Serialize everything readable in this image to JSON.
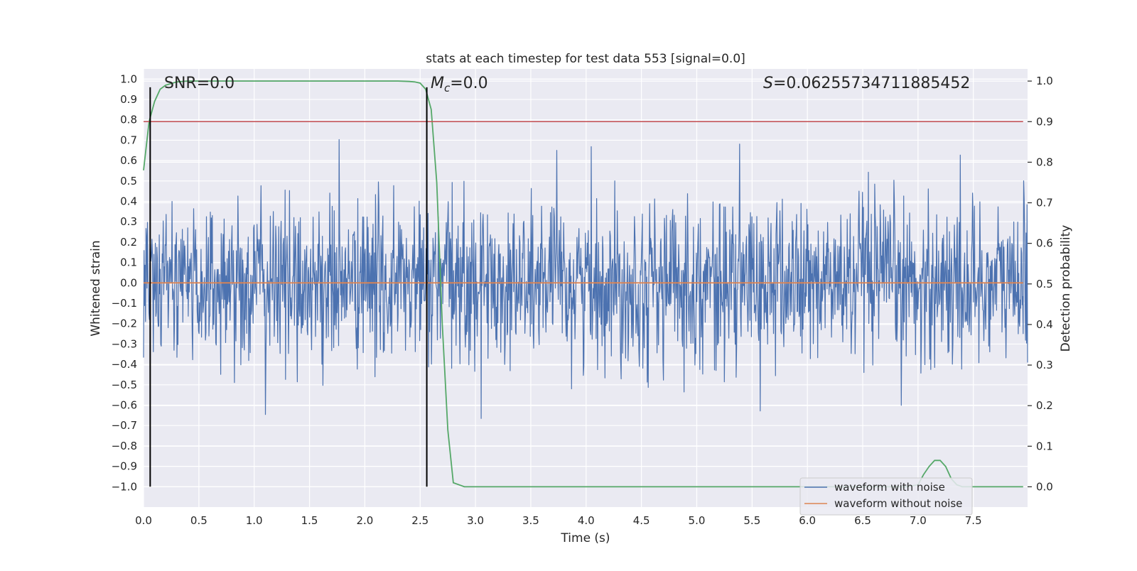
{
  "chart_data": {
    "type": "line",
    "title": "stats at each timestep for test data 553 [signal=0.0]",
    "xlabel": "Time (s)",
    "ylabel_left": "Whitened strain",
    "ylabel_right": "Detection probability",
    "xlim": [
      0.0,
      7.99
    ],
    "ylim_left": [
      -1.1,
      1.05
    ],
    "ylim_right": [
      -0.05,
      1.03
    ],
    "x_ticks": [
      0.0,
      0.5,
      1.0,
      1.5,
      2.0,
      2.5,
      3.0,
      3.5,
      4.0,
      4.5,
      5.0,
      5.5,
      6.0,
      6.5,
      7.0,
      7.5
    ],
    "x_tick_labels": [
      "0.0",
      "0.5",
      "1.0",
      "1.5",
      "2.0",
      "2.5",
      "3.0",
      "3.5",
      "4.0",
      "4.5",
      "5.0",
      "5.5",
      "6.0",
      "6.5",
      "7.0",
      "7.5"
    ],
    "y_left_ticks": [
      1.0,
      0.9,
      0.8,
      0.7,
      0.6,
      0.5,
      0.4,
      0.3,
      0.2,
      0.1,
      0.0,
      -0.1,
      -0.2,
      -0.3,
      -0.4,
      -0.5,
      -0.6,
      -0.7,
      -0.8,
      -0.9,
      -1.0
    ],
    "y_left_tick_labels": [
      "1.0",
      "0.9",
      "0.8",
      "0.7",
      "0.6",
      "0.5",
      "0.4",
      "0.3",
      "0.2",
      "0.1",
      "0.0",
      "−0.1",
      "−0.2",
      "−0.3",
      "−0.4",
      "−0.5",
      "−0.6",
      "−0.7",
      "−0.8",
      "−0.9",
      "−1.0"
    ],
    "y_right_ticks": [
      1.0,
      0.9,
      0.8,
      0.7,
      0.6,
      0.5,
      0.4,
      0.3,
      0.2,
      0.1,
      0.0
    ],
    "y_right_tick_labels": [
      "1.0",
      "0.9",
      "0.8",
      "0.7",
      "0.6",
      "0.5",
      "0.4",
      "0.3",
      "0.2",
      "0.1",
      "0.0"
    ],
    "grid": true,
    "annotations": {
      "snr": "SNR=0.0",
      "mc_symbol": "M",
      "mc_sub": "c",
      "mc_value": "=0.0",
      "s_symbol": "S",
      "s_value": "=0.06255734711885452"
    },
    "vertical_lines": [
      {
        "x": 0.06,
        "y_from": -1.0,
        "y_to": 0.96,
        "color": "#000000"
      },
      {
        "x": 2.56,
        "y_from": -1.0,
        "y_to": 0.96,
        "color": "#000000"
      }
    ],
    "threshold": {
      "axis": "right",
      "y": 0.9,
      "color": "#c44e52"
    },
    "series": [
      {
        "name": "waveform with noise",
        "axis": "left",
        "color": "#4c72b0",
        "kind": "noise",
        "sample_count": 1800,
        "envelope_sigma": 0.2,
        "clip": [
          -1.0,
          0.96
        ]
      },
      {
        "name": "waveform without noise",
        "axis": "left",
        "color": "#dd8452",
        "x": [
          0.0,
          7.95
        ],
        "y": [
          0.0,
          0.0
        ]
      },
      {
        "name": "detection probability",
        "axis": "right",
        "color": "#55a868",
        "x": [
          0.0,
          0.05,
          0.1,
          0.15,
          0.2,
          0.3,
          0.4,
          0.5,
          1.0,
          1.5,
          2.0,
          2.3,
          2.4,
          2.45,
          2.5,
          2.55,
          2.6,
          2.65,
          2.7,
          2.75,
          2.8,
          2.9,
          3.0,
          4.0,
          5.0,
          6.0,
          6.5,
          6.9,
          7.0,
          7.05,
          7.1,
          7.15,
          7.2,
          7.25,
          7.3,
          7.35,
          7.4,
          7.5,
          7.95
        ],
        "y": [
          0.78,
          0.9,
          0.95,
          0.98,
          0.99,
          0.998,
          1.0,
          1.0,
          1.0,
          1.0,
          1.0,
          1.0,
          0.999,
          0.998,
          0.995,
          0.98,
          0.93,
          0.75,
          0.4,
          0.14,
          0.01,
          0.0,
          0.0,
          0.0,
          0.0,
          0.0,
          0.0,
          0.0,
          0.005,
          0.03,
          0.05,
          0.065,
          0.065,
          0.05,
          0.02,
          0.005,
          0.0,
          0.0,
          0.0
        ]
      }
    ],
    "legend": {
      "placement": "lower-right",
      "entries": [
        {
          "label": "waveform with noise",
          "color": "#4c72b0"
        },
        {
          "label": "waveform without noise",
          "color": "#dd8452"
        }
      ]
    },
    "colors": {
      "plot_background": "#eaeaf2",
      "grid": "#ffffff",
      "text": "#262626"
    }
  }
}
